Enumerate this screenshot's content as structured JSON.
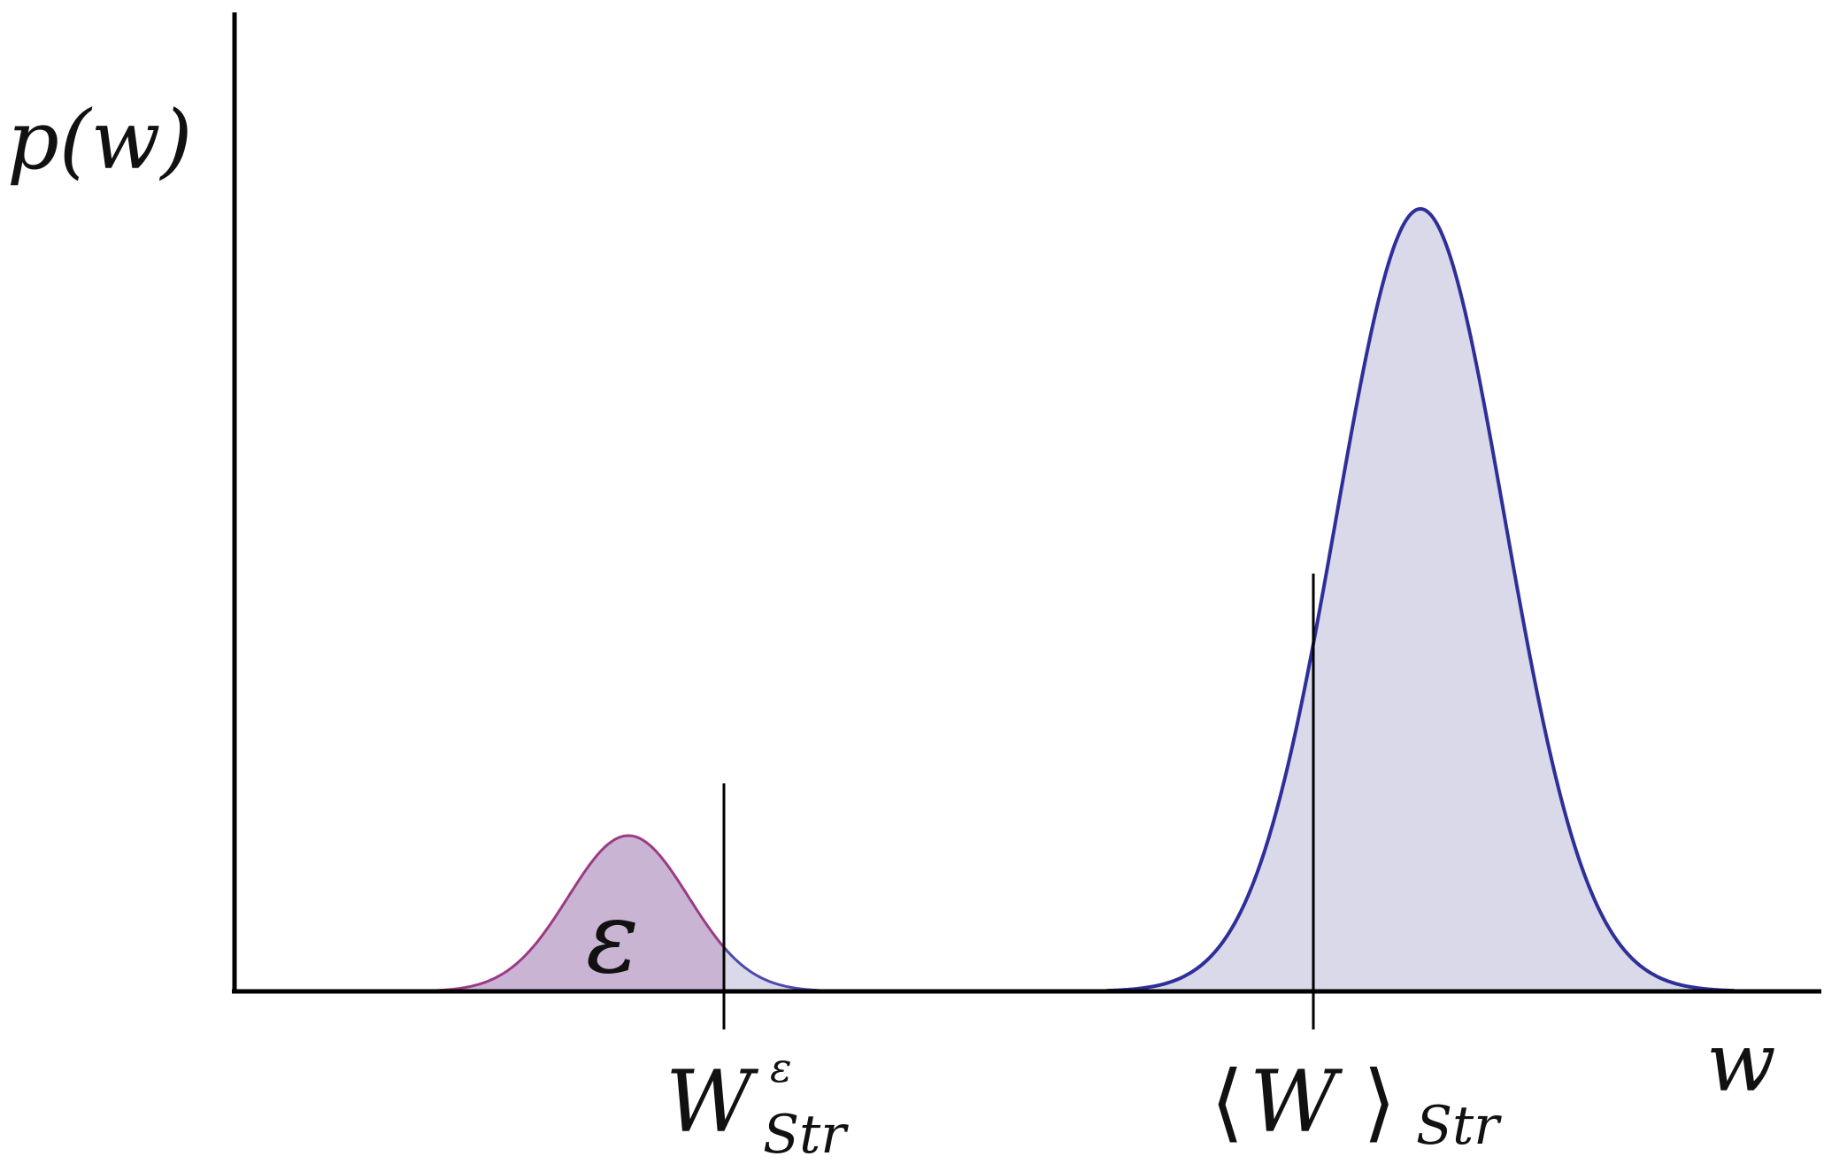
{
  "labels": {
    "y_axis": "p(w)",
    "x_axis": "w",
    "epsilon_region": "ε",
    "threshold_main": "W",
    "threshold_sup": "ε",
    "threshold_sub": "Str",
    "mean_langle": "⟨",
    "mean_main": "W",
    "mean_rangle": "⟩",
    "mean_sub": "Str"
  },
  "colors": {
    "axis": "#000000",
    "small_curve_stroke": "#9b3a86",
    "large_curve_stroke": "#2f2f9a",
    "tail_stroke": "#4a4ab0",
    "region_fill": "#d9d9ea",
    "epsilon_fill": "#c9b4d3"
  }
}
